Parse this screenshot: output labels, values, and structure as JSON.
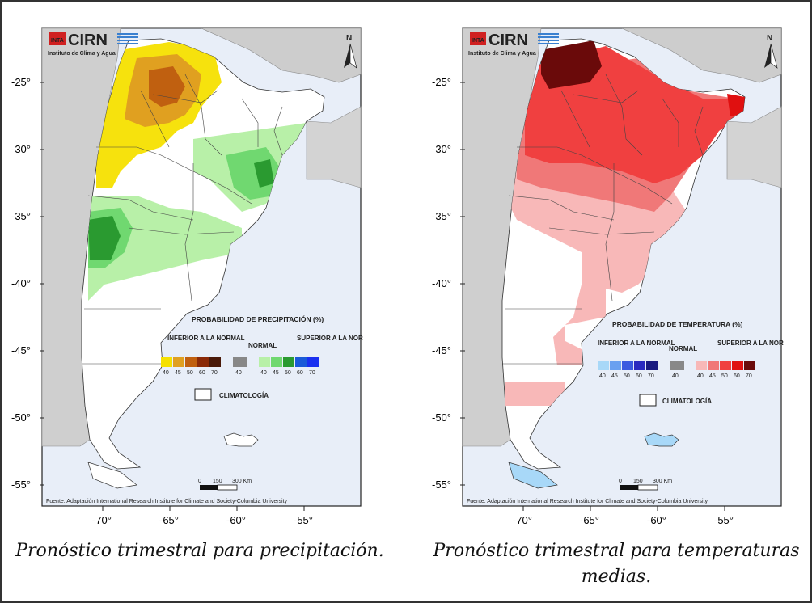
{
  "logo": {
    "brand": "CIRN",
    "badge": "INTA",
    "subtitle": "Instituto de Clima y Agua"
  },
  "axes": {
    "lat_ticks": [
      "-25°",
      "-30°",
      "-35°",
      "-40°",
      "-45°",
      "-50°",
      "-55°"
    ],
    "lon_ticks": [
      "-70°",
      "-65°",
      "-60°",
      "-55°"
    ]
  },
  "north_label": "N",
  "scalebar": {
    "labels": [
      "0",
      "150",
      "300 Km"
    ]
  },
  "source": "Fuente: Adaptación International Research Institute for Climate and Society-Columbia University",
  "climatologia": "CLIMATOLOGÍA",
  "maps": [
    {
      "legend_title": "PROBABILIDAD DE PRECIPITACIÓN (%)",
      "below_label": "INFERIOR A LA NORMAL",
      "normal_label": "NORMAL",
      "above_label": "SUPERIOR A LA NORMAL",
      "below_ticks": [
        "40",
        "45",
        "50",
        "60",
        "70"
      ],
      "normal_tick": "40",
      "above_ticks": [
        "40",
        "45",
        "50",
        "60",
        "70"
      ],
      "below_colors": [
        "#f5e000",
        "#e0a020",
        "#c06010",
        "#8a2a08",
        "#4a1a0a"
      ],
      "normal_color": "#888888",
      "above_colors": [
        "#b8f0a8",
        "#70d870",
        "#2a9a30",
        "#1a5ad8",
        "#1a30f0"
      ],
      "caption": "Pronóstico trimestral para precipitación."
    },
    {
      "legend_title": "PROBABILIDAD DE TEMPERATURA (%)",
      "below_label": "INFERIOR A LA NORMAL",
      "normal_label": "NORMAL",
      "above_label": "SUPERIOR A LA NORMAL",
      "below_ticks": [
        "40",
        "45",
        "50",
        "60",
        "70"
      ],
      "normal_tick": "40",
      "above_ticks": [
        "40",
        "45",
        "50",
        "60",
        "70"
      ],
      "below_colors": [
        "#a8d8f8",
        "#6aa0f0",
        "#3a5ae0",
        "#2a2ac0",
        "#1a1a80"
      ],
      "normal_color": "#888888",
      "above_colors": [
        "#f8b8b8",
        "#f07878",
        "#f04040",
        "#e01010",
        "#6a0a0a"
      ],
      "caption": "Pronóstico trimestral para temperaturas medias."
    }
  ]
}
